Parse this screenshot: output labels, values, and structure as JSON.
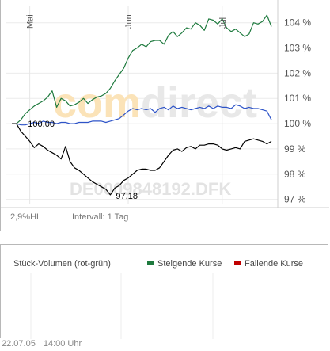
{
  "watermark": {
    "brand_left": "com",
    "brand_right": "direct",
    "symbol": "DE0009848192.DFK"
  },
  "footer": {
    "percent_label": "2,9%HL",
    "interval_label": "Intervall: 1 Tag"
  },
  "volume": {
    "title": "Stück-Volumen (rot-grün)",
    "legend": [
      {
        "label": "Steigende Kurse",
        "color": "#1e7a3e"
      },
      {
        "label": "Fallende Kurse",
        "color": "#c00000"
      }
    ]
  },
  "timestamp": {
    "date": "22.07.05",
    "time": "14:00 Uhr"
  },
  "chart_data": {
    "type": "line",
    "x_ticks": [
      "Mai",
      "Jun",
      "Jul"
    ],
    "x_tick_index": [
      4,
      26,
      47
    ],
    "y_ticks": [
      "104 %",
      "103 %",
      "102 %",
      "101 %",
      "100 %",
      "99 %",
      "98 %",
      "97 %"
    ],
    "y_tick_values": [
      104,
      103,
      102,
      101,
      100,
      99,
      98,
      97
    ],
    "ylim": [
      96.8,
      104.65
    ],
    "annotations": [
      {
        "text": "100,00",
        "index": 2,
        "value": 100.0
      },
      {
        "text": "97,18",
        "index": 22,
        "value": 97.18
      }
    ],
    "series": [
      {
        "color": "#1e7a3e",
        "values": [
          100.0,
          100.0,
          100.15,
          100.4,
          100.55,
          100.7,
          100.8,
          100.9,
          101.05,
          101.3,
          100.65,
          101.0,
          100.9,
          100.7,
          100.75,
          100.85,
          101.0,
          100.8,
          100.95,
          101.05,
          101.1,
          101.2,
          101.4,
          101.7,
          101.95,
          102.2,
          102.6,
          102.9,
          103.0,
          103.15,
          103.05,
          103.25,
          103.3,
          103.3,
          103.15,
          103.5,
          103.65,
          103.45,
          103.6,
          103.8,
          103.75,
          104.0,
          103.9,
          103.7,
          104.15,
          104.1,
          103.95,
          104.15,
          103.8,
          103.65,
          103.75,
          103.6,
          103.45,
          103.55,
          104.0,
          103.95,
          104.05,
          104.3,
          103.85
        ]
      },
      {
        "color": "#2e54c8",
        "values": [
          100.0,
          100.0,
          99.95,
          99.95,
          100.0,
          100.05,
          100.0,
          100.1,
          100.05,
          100.05,
          100.0,
          100.05,
          100.05,
          100.0,
          100.0,
          100.05,
          100.05,
          100.05,
          100.1,
          100.1,
          100.1,
          100.05,
          100.1,
          100.15,
          100.2,
          100.35,
          100.5,
          100.6,
          100.55,
          100.6,
          100.55,
          100.6,
          100.45,
          100.6,
          100.65,
          100.55,
          100.7,
          100.6,
          100.65,
          100.6,
          100.55,
          100.6,
          100.65,
          100.6,
          100.7,
          100.6,
          100.7,
          100.65,
          100.65,
          100.6,
          100.75,
          100.7,
          100.6,
          100.65,
          100.6,
          100.6,
          100.55,
          100.5,
          100.15
        ]
      },
      {
        "color": "#000000",
        "values": [
          100.0,
          100.0,
          99.7,
          99.5,
          99.3,
          99.05,
          99.2,
          99.1,
          98.95,
          98.85,
          98.75,
          98.6,
          99.1,
          98.5,
          98.25,
          98.15,
          98.0,
          97.85,
          97.7,
          97.6,
          97.5,
          97.4,
          97.18,
          97.45,
          97.55,
          97.75,
          97.85,
          98.0,
          98.15,
          98.2,
          98.2,
          98.15,
          98.15,
          98.25,
          98.5,
          98.75,
          98.95,
          99.0,
          98.9,
          99.05,
          99.1,
          99.0,
          99.15,
          99.15,
          99.2,
          99.2,
          99.15,
          99.0,
          98.95,
          99.0,
          99.05,
          99.0,
          99.3,
          99.35,
          99.4,
          99.35,
          99.3,
          99.2,
          99.3
        ]
      }
    ]
  }
}
